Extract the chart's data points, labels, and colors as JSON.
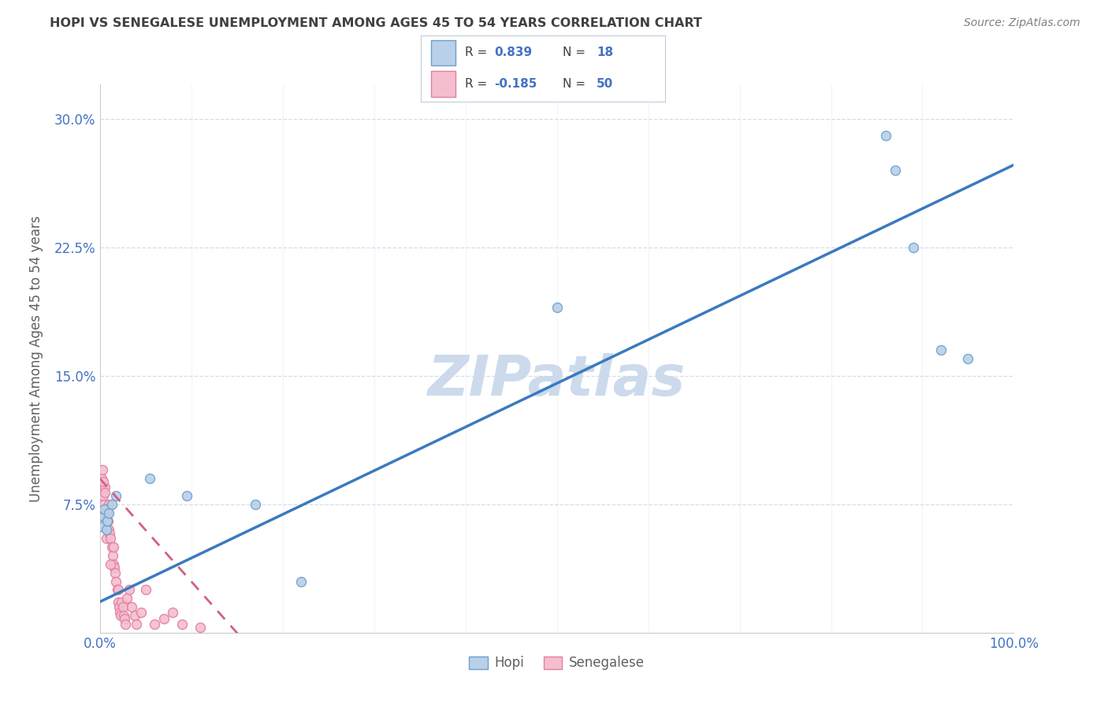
{
  "title": "HOPI VS SENEGALESE UNEMPLOYMENT AMONG AGES 45 TO 54 YEARS CORRELATION CHART",
  "source": "Source: ZipAtlas.com",
  "ylabel": "Unemployment Among Ages 45 to 54 years",
  "hopi_R": 0.839,
  "hopi_N": 18,
  "senegalese_R": -0.185,
  "senegalese_N": 50,
  "hopi_color": "#b8d0e8",
  "hopi_edge_color": "#6ca0cc",
  "senegalese_color": "#f5bece",
  "senegalese_edge_color": "#e080a0",
  "trend_hopi_color": "#3a7abf",
  "trend_senegalese_color": "#d45f80",
  "watermark_color": "#ccdaec",
  "xlim": [
    0.0,
    1.0
  ],
  "ylim": [
    0.0,
    0.32
  ],
  "xticks": [
    0.0,
    0.1,
    0.2,
    0.3,
    0.4,
    0.5,
    0.6,
    0.7,
    0.8,
    0.9,
    1.0
  ],
  "xticklabels": [
    "0.0%",
    "",
    "",
    "",
    "",
    "",
    "",
    "",
    "",
    "",
    "100.0%"
  ],
  "yticks": [
    0.0,
    0.075,
    0.15,
    0.225,
    0.3
  ],
  "yticklabels": [
    "",
    "7.5%",
    "15.0%",
    "22.5%",
    "30.0%"
  ],
  "hopi_x": [
    0.002,
    0.004,
    0.005,
    0.007,
    0.008,
    0.01,
    0.013,
    0.018,
    0.055,
    0.095,
    0.17,
    0.5,
    0.86,
    0.87,
    0.89,
    0.92,
    0.95,
    0.22
  ],
  "hopi_y": [
    0.062,
    0.068,
    0.072,
    0.06,
    0.065,
    0.07,
    0.075,
    0.08,
    0.09,
    0.08,
    0.075,
    0.19,
    0.29,
    0.27,
    0.225,
    0.165,
    0.16,
    0.03
  ],
  "senegalese_x": [
    0.002,
    0.003,
    0.004,
    0.005,
    0.005,
    0.006,
    0.007,
    0.007,
    0.008,
    0.008,
    0.009,
    0.01,
    0.01,
    0.011,
    0.012,
    0.013,
    0.014,
    0.015,
    0.015,
    0.016,
    0.017,
    0.018,
    0.019,
    0.02,
    0.02,
    0.021,
    0.022,
    0.023,
    0.024,
    0.025,
    0.026,
    0.027,
    0.028,
    0.03,
    0.032,
    0.035,
    0.038,
    0.04,
    0.045,
    0.05,
    0.06,
    0.07,
    0.08,
    0.09,
    0.11,
    0.003,
    0.004,
    0.006,
    0.008,
    0.012
  ],
  "senegalese_y": [
    0.09,
    0.085,
    0.08,
    0.075,
    0.07,
    0.085,
    0.065,
    0.055,
    0.07,
    0.06,
    0.065,
    0.075,
    0.06,
    0.058,
    0.055,
    0.05,
    0.045,
    0.05,
    0.04,
    0.038,
    0.035,
    0.03,
    0.025,
    0.025,
    0.018,
    0.015,
    0.012,
    0.01,
    0.018,
    0.015,
    0.01,
    0.008,
    0.005,
    0.02,
    0.025,
    0.015,
    0.01,
    0.005,
    0.012,
    0.025,
    0.005,
    0.008,
    0.012,
    0.005,
    0.003,
    0.095,
    0.088,
    0.082,
    0.072,
    0.04
  ],
  "marker_size": 75,
  "grid_color": "#d5dded",
  "bg_color": "#ffffff",
  "title_color": "#404040",
  "axis_label_color": "#606060",
  "tick_color": "#4472c4",
  "legend_R_color": "#4472c4",
  "legend_N_color": "#4472c4"
}
